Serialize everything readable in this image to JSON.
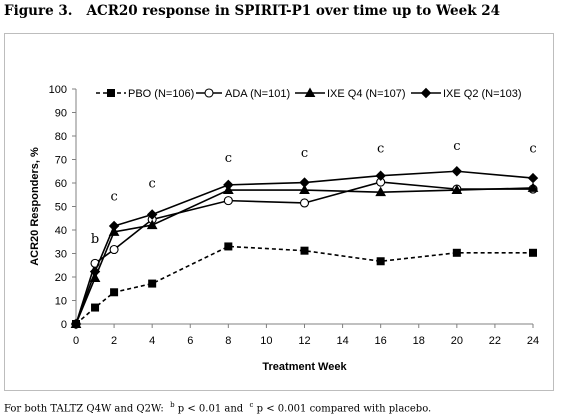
{
  "figure": {
    "label": "Figure 3.",
    "title": "ACR20 response in SPIRIT-P1 over time up to Week 24"
  },
  "footnote": {
    "prefix": "For both TALTZ Q4W and Q2W:",
    "b_mark": "b",
    "b_text": "p < 0.01 and",
    "c_mark": "c",
    "c_text": "p < 0.001 compared with placebo."
  },
  "chart_data": {
    "type": "line",
    "xlabel": "Treatment Week",
    "ylabel": "ACR20 Responders, %",
    "xlim": [
      0,
      24
    ],
    "ylim": [
      0,
      100
    ],
    "xticks": [
      0,
      2,
      4,
      6,
      8,
      10,
      12,
      14,
      16,
      18,
      20,
      22,
      24
    ],
    "yticks": [
      0,
      10,
      20,
      30,
      40,
      50,
      60,
      70,
      80,
      90,
      100
    ],
    "grid": false,
    "legend_position": "top",
    "series": [
      {
        "name": "PBO (N=106)",
        "marker": "square",
        "marker_fill": "#000000",
        "line_style": "dashed",
        "color": "#000000",
        "x": [
          0,
          1,
          2,
          4,
          8,
          12,
          16,
          20,
          24
        ],
        "y": [
          0,
          7,
          13.5,
          17.2,
          33,
          31.2,
          26.7,
          30.3,
          30.3
        ]
      },
      {
        "name": "ADA (N=101)",
        "marker": "circle",
        "marker_fill": "#ffffff",
        "line_style": "solid",
        "color": "#000000",
        "x": [
          0,
          1,
          2,
          4,
          8,
          12,
          16,
          20,
          24
        ],
        "y": [
          0,
          25.8,
          31.7,
          44.5,
          52.5,
          51.5,
          60.4,
          57.4,
          57.4
        ]
      },
      {
        "name": "IXE Q4 (N=107)",
        "marker": "triangle",
        "marker_fill": "#000000",
        "line_style": "solid",
        "color": "#000000",
        "x": [
          0,
          1,
          2,
          4,
          8,
          12,
          16,
          20,
          24
        ],
        "y": [
          0,
          19.6,
          39.2,
          42.1,
          57,
          57,
          56.1,
          57,
          57.9
        ]
      },
      {
        "name": "IXE Q2 (N=103)",
        "marker": "diamond",
        "marker_fill": "#000000",
        "line_style": "solid",
        "color": "#000000",
        "x": [
          0,
          1,
          2,
          4,
          8,
          12,
          16,
          20,
          24
        ],
        "y": [
          0,
          22.3,
          41.7,
          46.6,
          59.2,
          60.2,
          63.1,
          65,
          62.1
        ]
      }
    ],
    "annotations": [
      {
        "text": "b",
        "x": 1,
        "y": 34.5
      },
      {
        "text": "c",
        "x": 2,
        "y": 52.5
      },
      {
        "text": "c",
        "x": 4,
        "y": 58
      },
      {
        "text": "c",
        "x": 8,
        "y": 69
      },
      {
        "text": "c",
        "x": 12,
        "y": 71
      },
      {
        "text": "c",
        "x": 16,
        "y": 73
      },
      {
        "text": "c",
        "x": 20,
        "y": 74
      },
      {
        "text": "c",
        "x": 24,
        "y": 73
      }
    ]
  }
}
